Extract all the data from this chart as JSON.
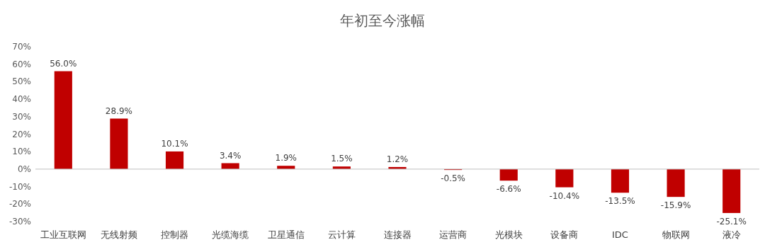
{
  "chart_data": {
    "type": "bar",
    "title": "年初至今涨幅",
    "categories": [
      "工业互联网",
      "无线射频",
      "控制器",
      "光缆海缆",
      "卫星通信",
      "云计算",
      "连接器",
      "运营商",
      "光模块",
      "设备商",
      "IDC",
      "物联网",
      "液冷"
    ],
    "values": [
      56.0,
      28.9,
      10.1,
      3.4,
      1.9,
      1.5,
      1.2,
      -0.5,
      -6.6,
      -10.4,
      -13.5,
      -15.9,
      -25.1
    ],
    "value_labels": [
      "56.0%",
      "28.9%",
      "10.1%",
      "3.4%",
      "1.9%",
      "1.5%",
      "1.2%",
      "-0.5%",
      "-6.6%",
      "-10.4%",
      "-13.5%",
      "-15.9%",
      "-25.1%"
    ],
    "color": "#c00000",
    "ylim": [
      -30,
      70
    ],
    "yticks": [
      {
        "value": 70,
        "label": "70%"
      },
      {
        "value": 60,
        "label": "60%"
      },
      {
        "value": 50,
        "label": "50%"
      },
      {
        "value": 40,
        "label": "40%"
      },
      {
        "value": 30,
        "label": "30%"
      },
      {
        "value": 20,
        "label": "20%"
      },
      {
        "value": 10,
        "label": "10%"
      },
      {
        "value": 0,
        "label": "0%"
      },
      {
        "value": -10,
        "label": "-10%"
      },
      {
        "value": -20,
        "label": "-20%"
      },
      {
        "value": -30,
        "label": "-30%"
      }
    ]
  }
}
